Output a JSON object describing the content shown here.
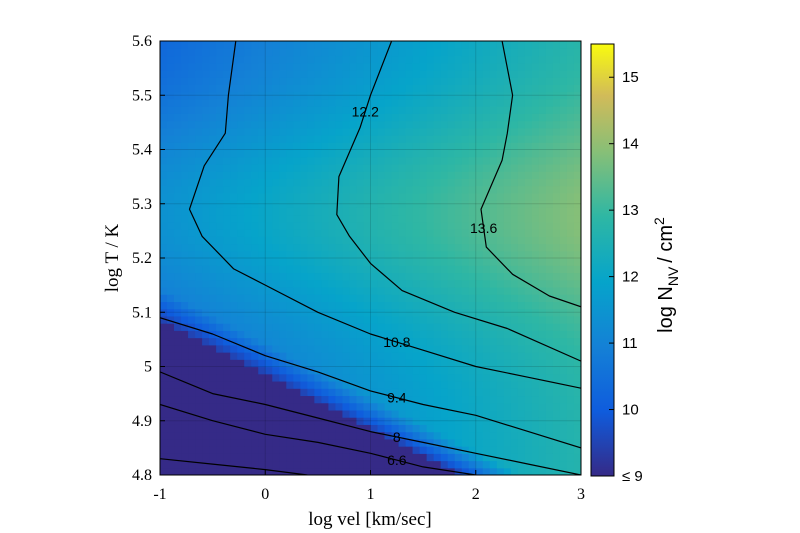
{
  "chart_data": {
    "type": "heatmap",
    "x": {
      "label": "log vel [km/sec]",
      "range": [
        -1,
        3
      ],
      "ticks": [
        "-1",
        "0",
        "1",
        "2",
        "3"
      ]
    },
    "y": {
      "label": "log T / K",
      "range": [
        4.8,
        5.6
      ],
      "ticks": [
        "4.8",
        "4.9",
        "5",
        "5.1",
        "5.2",
        "5.3",
        "5.4",
        "5.5",
        "5.6"
      ]
    },
    "colorbar": {
      "label_main": "log N",
      "label_sub": "NV",
      "label_unit": "/ cm",
      "label_sup": "2",
      "range": [
        9,
        15.5
      ],
      "ticks": [
        "≤ 9",
        "10",
        "11",
        "12",
        "13",
        "14",
        "15"
      ],
      "colormap": "parula"
    },
    "grid": true,
    "contours": [
      {
        "level": "13.6",
        "points": [
          [
            2.25,
            5.6
          ],
          [
            2.35,
            5.5
          ],
          [
            2.3,
            5.43
          ],
          [
            2.25,
            5.38
          ],
          [
            2.05,
            5.29
          ],
          [
            2.1,
            5.22
          ],
          [
            2.35,
            5.17
          ],
          [
            2.7,
            5.13
          ],
          [
            3.0,
            5.11
          ]
        ]
      },
      {
        "level": "12.2",
        "points": [
          [
            1.2,
            5.6
          ],
          [
            1.0,
            5.5
          ],
          [
            0.9,
            5.44
          ],
          [
            0.7,
            5.35
          ],
          [
            0.68,
            5.28
          ],
          [
            0.8,
            5.24
          ],
          [
            1.0,
            5.19
          ],
          [
            1.3,
            5.14
          ],
          [
            1.8,
            5.1
          ],
          [
            2.3,
            5.07
          ],
          [
            3.0,
            5.01
          ]
        ]
      },
      {
        "level": "10.8",
        "points": [
          [
            -0.28,
            5.6
          ],
          [
            -0.35,
            5.5
          ],
          [
            -0.38,
            5.43
          ],
          [
            -0.58,
            5.37
          ],
          [
            -0.72,
            5.29
          ],
          [
            -0.6,
            5.24
          ],
          [
            -0.3,
            5.18
          ],
          [
            0,
            5.15
          ],
          [
            0.5,
            5.1
          ],
          [
            1,
            5.06
          ],
          [
            1.5,
            5.03
          ],
          [
            2,
            5.0
          ],
          [
            2.5,
            4.98
          ],
          [
            3,
            4.96
          ]
        ]
      },
      {
        "level": "9.4",
        "points": [
          [
            -1,
            5.09
          ],
          [
            -0.5,
            5.06
          ],
          [
            0,
            5.02
          ],
          [
            0.5,
            4.99
          ],
          [
            1.0,
            4.955
          ],
          [
            1.5,
            4.93
          ],
          [
            2.0,
            4.91
          ],
          [
            2.5,
            4.88
          ],
          [
            3.0,
            4.85
          ]
        ]
      },
      {
        "level": "8",
        "points": [
          [
            -1,
            4.99
          ],
          [
            -0.5,
            4.95
          ],
          [
            0,
            4.93
          ],
          [
            0.5,
            4.905
          ],
          [
            1.0,
            4.88
          ],
          [
            1.5,
            4.86
          ],
          [
            2.0,
            4.84
          ],
          [
            2.5,
            4.82
          ],
          [
            3.0,
            4.8
          ]
        ]
      },
      {
        "level": "6.6",
        "points": [
          [
            -1,
            4.93
          ],
          [
            -0.5,
            4.9
          ],
          [
            0,
            4.875
          ],
          [
            0.5,
            4.86
          ],
          [
            1.0,
            4.84
          ],
          [
            1.5,
            4.815
          ],
          [
            2.0,
            4.8
          ]
        ]
      },
      {
        "level": "",
        "points": [
          [
            -1,
            4.83
          ],
          [
            -0.5,
            4.82
          ],
          [
            0,
            4.81
          ],
          [
            0.4,
            4.8
          ]
        ]
      }
    ]
  }
}
